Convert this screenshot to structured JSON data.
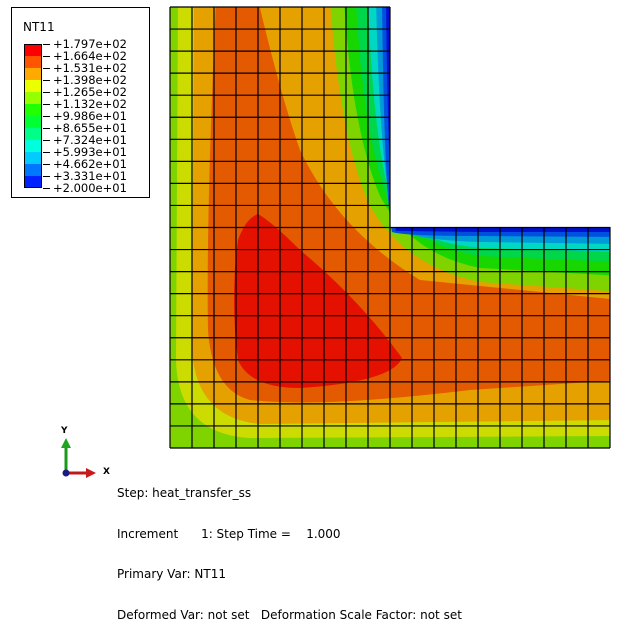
{
  "legend": {
    "title": "NT11",
    "values": [
      "+1.797e+02",
      "+1.664e+02",
      "+1.531e+02",
      "+1.398e+02",
      "+1.265e+02",
      "+1.132e+02",
      "+9.986e+01",
      "+8.655e+01",
      "+7.324e+01",
      "+5.993e+01",
      "+4.662e+01",
      "+3.331e+01",
      "+2.000e+01"
    ],
    "colors": [
      "#ff0000",
      "#ff5500",
      "#ffaa00",
      "#ecff00",
      "#96ff00",
      "#22ff00",
      "#00ff33",
      "#00ff88",
      "#00ffdd",
      "#00ccff",
      "#0077ff",
      "#0022ff"
    ]
  },
  "plot_colors": {
    "band_red": "#e41000",
    "band_redorange": "#e35a00",
    "band_orange": "#e5a100",
    "band_yellow": "#cddc00",
    "band_yellowgreen": "#7fd400",
    "band_green": "#18d600",
    "band_green2": "#00d64a",
    "band_teal": "#00d8c4",
    "band_cyan": "#009ad8",
    "band_blue": "#0050e0",
    "band_darkblue": "#0010d0",
    "mesh_line": "#000000"
  },
  "triad": {
    "x_label": "X",
    "y_label": "Y"
  },
  "info": {
    "step": "Step: heat_transfer_ss",
    "increment": "Increment      1: Step Time =    1.000",
    "primary_var": "Primary Var: NT11",
    "deformed": "Deformed Var: not set   Deformation Scale Factor: not set"
  }
}
